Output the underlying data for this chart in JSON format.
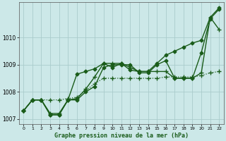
{
  "background_color": "#cce8e8",
  "grid_color": "#aacccc",
  "line_color": "#1a5c1a",
  "title": "Graphe pression niveau de la mer (hPa)",
  "xlabel_ticks": [
    0,
    1,
    2,
    3,
    4,
    5,
    6,
    7,
    8,
    9,
    10,
    11,
    12,
    13,
    14,
    15,
    16,
    17,
    18,
    19,
    20,
    21,
    22
  ],
  "ylim": [
    1006.8,
    1011.3
  ],
  "yticks": [
    1007,
    1008,
    1009,
    1010
  ],
  "series": [
    {
      "x": [
        0,
        1,
        2,
        3,
        4,
        5,
        6,
        7,
        8,
        9,
        10,
        11,
        12,
        13,
        14,
        15,
        16,
        17,
        18,
        19,
        20,
        21,
        22
      ],
      "y": [
        1007.3,
        1007.7,
        1007.7,
        1007.15,
        1007.15,
        1007.7,
        1008.65,
        1008.75,
        1008.85,
        1009.05,
        1008.9,
        1009.05,
        1008.8,
        1008.75,
        1008.75,
        1009.05,
        1009.35,
        1009.5,
        1009.65,
        1009.8,
        1009.9,
        1010.75,
        1011.1
      ],
      "marker": "D",
      "markersize": 2.5,
      "linewidth": 1.0,
      "linestyle": "-"
    },
    {
      "x": [
        0,
        1,
        2,
        3,
        4,
        5,
        6,
        7,
        8,
        9,
        10,
        11,
        12,
        13,
        14,
        15,
        16,
        17,
        18,
        19,
        20,
        21,
        22
      ],
      "y": [
        1007.3,
        1007.7,
        1007.7,
        1007.2,
        1007.2,
        1007.7,
        1007.75,
        1008.1,
        1008.55,
        1009.05,
        1009.05,
        1009.05,
        1008.9,
        1008.75,
        1008.75,
        1008.75,
        1008.75,
        1008.5,
        1008.5,
        1008.5,
        1008.7,
        1010.75,
        1010.3
      ],
      "marker": "+",
      "markersize": 4,
      "linewidth": 1.0,
      "linestyle": "-"
    },
    {
      "x": [
        0,
        1,
        2,
        3,
        4,
        5,
        6,
        7,
        8,
        9,
        10,
        11,
        12,
        13,
        14,
        15,
        16,
        17,
        18,
        19,
        20,
        21,
        22
      ],
      "y": [
        1007.3,
        1007.7,
        1007.7,
        1007.7,
        1007.7,
        1007.75,
        1007.8,
        1008.05,
        1008.3,
        1008.5,
        1008.5,
        1008.5,
        1008.5,
        1008.5,
        1008.5,
        1008.5,
        1008.55,
        1008.55,
        1008.55,
        1008.55,
        1008.6,
        1008.7,
        1008.75
      ],
      "marker": "+",
      "markersize": 4,
      "linewidth": 0.9,
      "linestyle": ":"
    },
    {
      "x": [
        0,
        1,
        2,
        3,
        4,
        5,
        6,
        7,
        8,
        9,
        10,
        11,
        12,
        13,
        14,
        15,
        16,
        17,
        18,
        19,
        20,
        21,
        22
      ],
      "y": [
        1007.3,
        1007.7,
        1007.7,
        1007.15,
        1007.15,
        1007.7,
        1007.7,
        1008.0,
        1008.2,
        1008.9,
        1009.0,
        1009.0,
        1009.0,
        1008.7,
        1008.7,
        1009.0,
        1009.15,
        1008.5,
        1008.5,
        1008.5,
        1009.45,
        1010.7,
        1011.05
      ],
      "marker": "D",
      "markersize": 2.5,
      "linewidth": 1.0,
      "linestyle": "-"
    }
  ]
}
